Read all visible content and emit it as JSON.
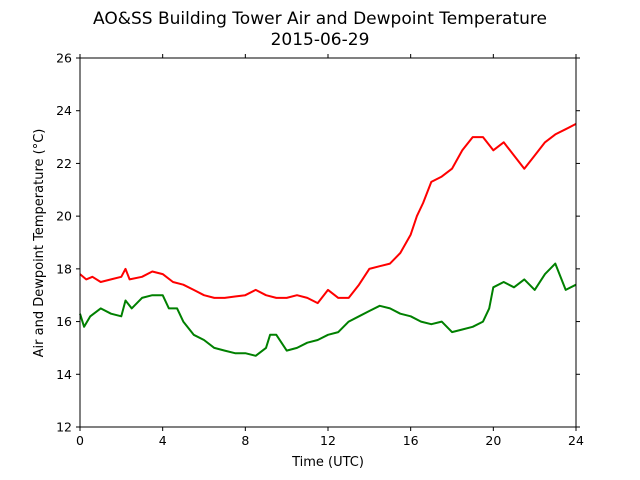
{
  "chart_data": {
    "type": "line",
    "title": "AO&SS Building Tower Air and Dewpoint Temperature",
    "subtitle": "2015-06-29",
    "xlabel": "Time (UTC)",
    "ylabel": "Air and Dewpoint Temperature (°C)",
    "xlim": [
      0,
      24
    ],
    "ylim": [
      12,
      26
    ],
    "xticks": [
      0,
      4,
      8,
      12,
      16,
      20,
      24
    ],
    "yticks": [
      12,
      14,
      16,
      18,
      20,
      22,
      24,
      26
    ],
    "grid": false,
    "series": [
      {
        "color": "#ff0000",
        "x": [
          0,
          0.3,
          0.6,
          1,
          1.5,
          2,
          2.2,
          2.4,
          3,
          3.5,
          4,
          4.5,
          5,
          5.5,
          6,
          6.5,
          7,
          7.5,
          8,
          8.5,
          9,
          9.5,
          10,
          10.5,
          11,
          11.5,
          12,
          12.5,
          13,
          13.5,
          14,
          14.5,
          15,
          15.5,
          16,
          16.3,
          16.6,
          17,
          17.5,
          18,
          18.5,
          19,
          19.5,
          20,
          20.5,
          21,
          21.5,
          22,
          22.5,
          23,
          23.5,
          24
        ],
        "y": [
          17.8,
          17.6,
          17.7,
          17.5,
          17.6,
          17.7,
          18.0,
          17.6,
          17.7,
          17.9,
          17.8,
          17.5,
          17.4,
          17.2,
          17.0,
          16.9,
          16.9,
          16.95,
          17.0,
          17.2,
          17.0,
          16.9,
          16.9,
          17.0,
          16.9,
          16.7,
          17.2,
          16.9,
          16.9,
          17.4,
          18.0,
          18.1,
          18.2,
          18.6,
          19.3,
          20.0,
          20.5,
          21.3,
          21.5,
          21.8,
          22.5,
          23.0,
          23.0,
          22.5,
          22.8,
          22.3,
          21.8,
          22.3,
          22.8,
          23.1,
          23.3,
          23.5
        ]
      },
      {
        "color": "#008000",
        "x": [
          0,
          0.2,
          0.5,
          1,
          1.5,
          2,
          2.2,
          2.5,
          3,
          3.5,
          4,
          4.3,
          4.7,
          5,
          5.5,
          6,
          6.5,
          7,
          7.5,
          8,
          8.5,
          9,
          9.2,
          9.5,
          10,
          10.5,
          11,
          11.5,
          12,
          12.5,
          13,
          13.5,
          14,
          14.5,
          15,
          15.5,
          16,
          16.5,
          17,
          17.5,
          18,
          18.5,
          19,
          19.5,
          19.8,
          20,
          20.5,
          21,
          21.5,
          22,
          22.5,
          23,
          23.5,
          24
        ],
        "y": [
          16.3,
          15.8,
          16.2,
          16.5,
          16.3,
          16.2,
          16.8,
          16.5,
          16.9,
          17.0,
          17.0,
          16.5,
          16.5,
          16.0,
          15.5,
          15.3,
          15.0,
          14.9,
          14.8,
          14.8,
          14.7,
          15.0,
          15.5,
          15.5,
          14.9,
          15.0,
          15.2,
          15.3,
          15.5,
          15.6,
          16.0,
          16.2,
          16.4,
          16.6,
          16.5,
          16.3,
          16.2,
          16.0,
          15.9,
          16.0,
          15.6,
          15.7,
          15.8,
          16.0,
          16.5,
          17.3,
          17.5,
          17.3,
          17.6,
          17.2,
          17.8,
          18.2,
          17.2,
          17.4
        ]
      }
    ]
  }
}
